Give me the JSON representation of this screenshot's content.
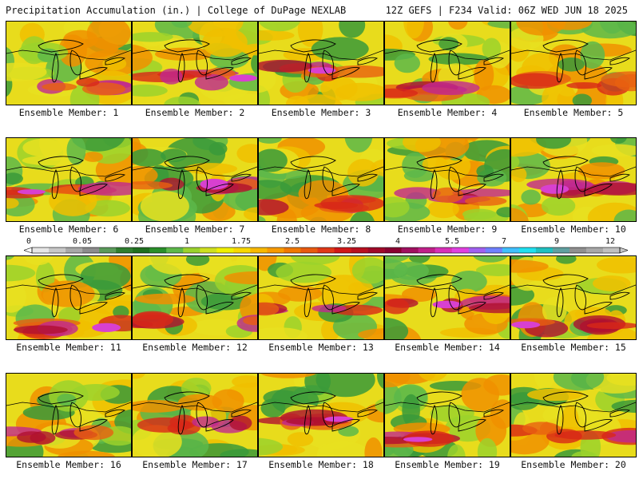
{
  "header": {
    "left_title": "Precipitation Accumulation (in.) | College of DuPage NEXLAB",
    "right_title": "12Z GEFS | F234 Valid: 06Z WED JUN 18 2025"
  },
  "colorbar": {
    "labels": [
      "0",
      "0.05",
      "0.25",
      "1",
      "1.75",
      "2.5",
      "3.25",
      "4",
      "5.5",
      "7",
      "9",
      "12"
    ],
    "colors": [
      "#e6e6e6",
      "#c8c8c8",
      "#a8a8a8",
      "#8c8c8c",
      "#5a9a5a",
      "#2f7d2f",
      "#1f6e1f",
      "#2a8f2a",
      "#5db84a",
      "#9bd22c",
      "#cfe020",
      "#f0f000",
      "#f8d800",
      "#f8b800",
      "#f89a00",
      "#f07800",
      "#e85a10",
      "#e03818",
      "#d01818",
      "#b81020",
      "#a00828",
      "#8a0030",
      "#a01060",
      "#c0208a",
      "#d830b8",
      "#e040e0",
      "#a060f0",
      "#7080ff",
      "#40c0ff",
      "#20e0f0",
      "#20c0c0",
      "#60a0a0",
      "#909090",
      "#a8a8a8",
      "#c0c0c0"
    ]
  },
  "members": [
    {
      "label": "Ensemble Member: 1"
    },
    {
      "label": "Ensemble Member: 2"
    },
    {
      "label": "Ensemble Member: 3"
    },
    {
      "label": "Ensemble Member: 4"
    },
    {
      "label": "Ensemble Member: 5"
    },
    {
      "label": "Ensemble Member: 6"
    },
    {
      "label": "Ensemble Member: 7"
    },
    {
      "label": "Ensemble Member: 8"
    },
    {
      "label": "Ensemble Member: 9"
    },
    {
      "label": "Ensemble Member: 10"
    },
    {
      "label": "Ensemble Member: 11"
    },
    {
      "label": "Ensemble Member: 12"
    },
    {
      "label": "Ensemble Member: 13"
    },
    {
      "label": "Ensemble Member: 14"
    },
    {
      "label": "Ensemble Member: 15"
    },
    {
      "label": "Ensemble Member: 16"
    },
    {
      "label": "Ensemble Member: 17"
    },
    {
      "label": "Ensemble Member: 18"
    },
    {
      "label": "Ensemble Member: 19"
    },
    {
      "label": "Ensemble Member: 20"
    }
  ]
}
